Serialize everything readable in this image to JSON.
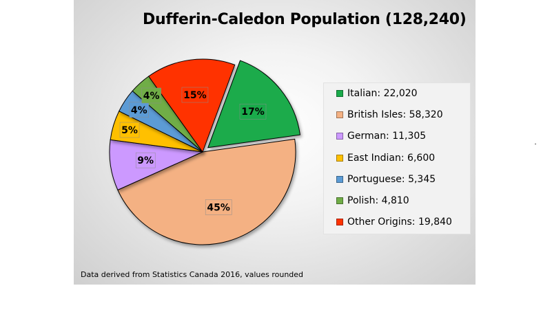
{
  "chart_data": {
    "type": "pie",
    "title": "Dufferin-Caledon Population (128,240)",
    "slices": [
      {
        "label": "Italian",
        "value": 22020,
        "value_label": "22,020",
        "percent_label": "17%",
        "color": "#1aab4b",
        "label_color": "#1aab4b",
        "exploded": true
      },
      {
        "label": "British Isles",
        "value": 58320,
        "value_label": "58,320",
        "percent_label": "45%",
        "color": "#f4b183",
        "label_color": "#f4b183",
        "exploded": false
      },
      {
        "label": "German",
        "value": 11305,
        "value_label": "11,305",
        "percent_label": "9%",
        "color": "#cc99ff",
        "label_color": "#cc99ff",
        "exploded": false
      },
      {
        "label": "East Indian",
        "value": 6600,
        "value_label": "6,600",
        "percent_label": "5%",
        "color": "#ffc000",
        "label_color": "#ffc000",
        "exploded": false
      },
      {
        "label": "Portuguese",
        "value": 5345,
        "value_label": "5,345",
        "percent_label": "4%",
        "color": "#5b9bd5",
        "label_color": "#5b9bd5",
        "exploded": false
      },
      {
        "label": "Polish",
        "value": 4810,
        "value_label": "4,810",
        "percent_label": "4%",
        "color": "#70ad47",
        "label_color": "#70ad47",
        "exploded": false
      },
      {
        "label": "Other Origins",
        "value": 19840,
        "value_label": "19,840",
        "percent_label": "15%",
        "color": "#ff3300",
        "label_color": "#ff3300",
        "exploded": false
      }
    ],
    "legend_position": "right",
    "source_note": "Data derived from Statistics Canada 2016, values rounded"
  }
}
